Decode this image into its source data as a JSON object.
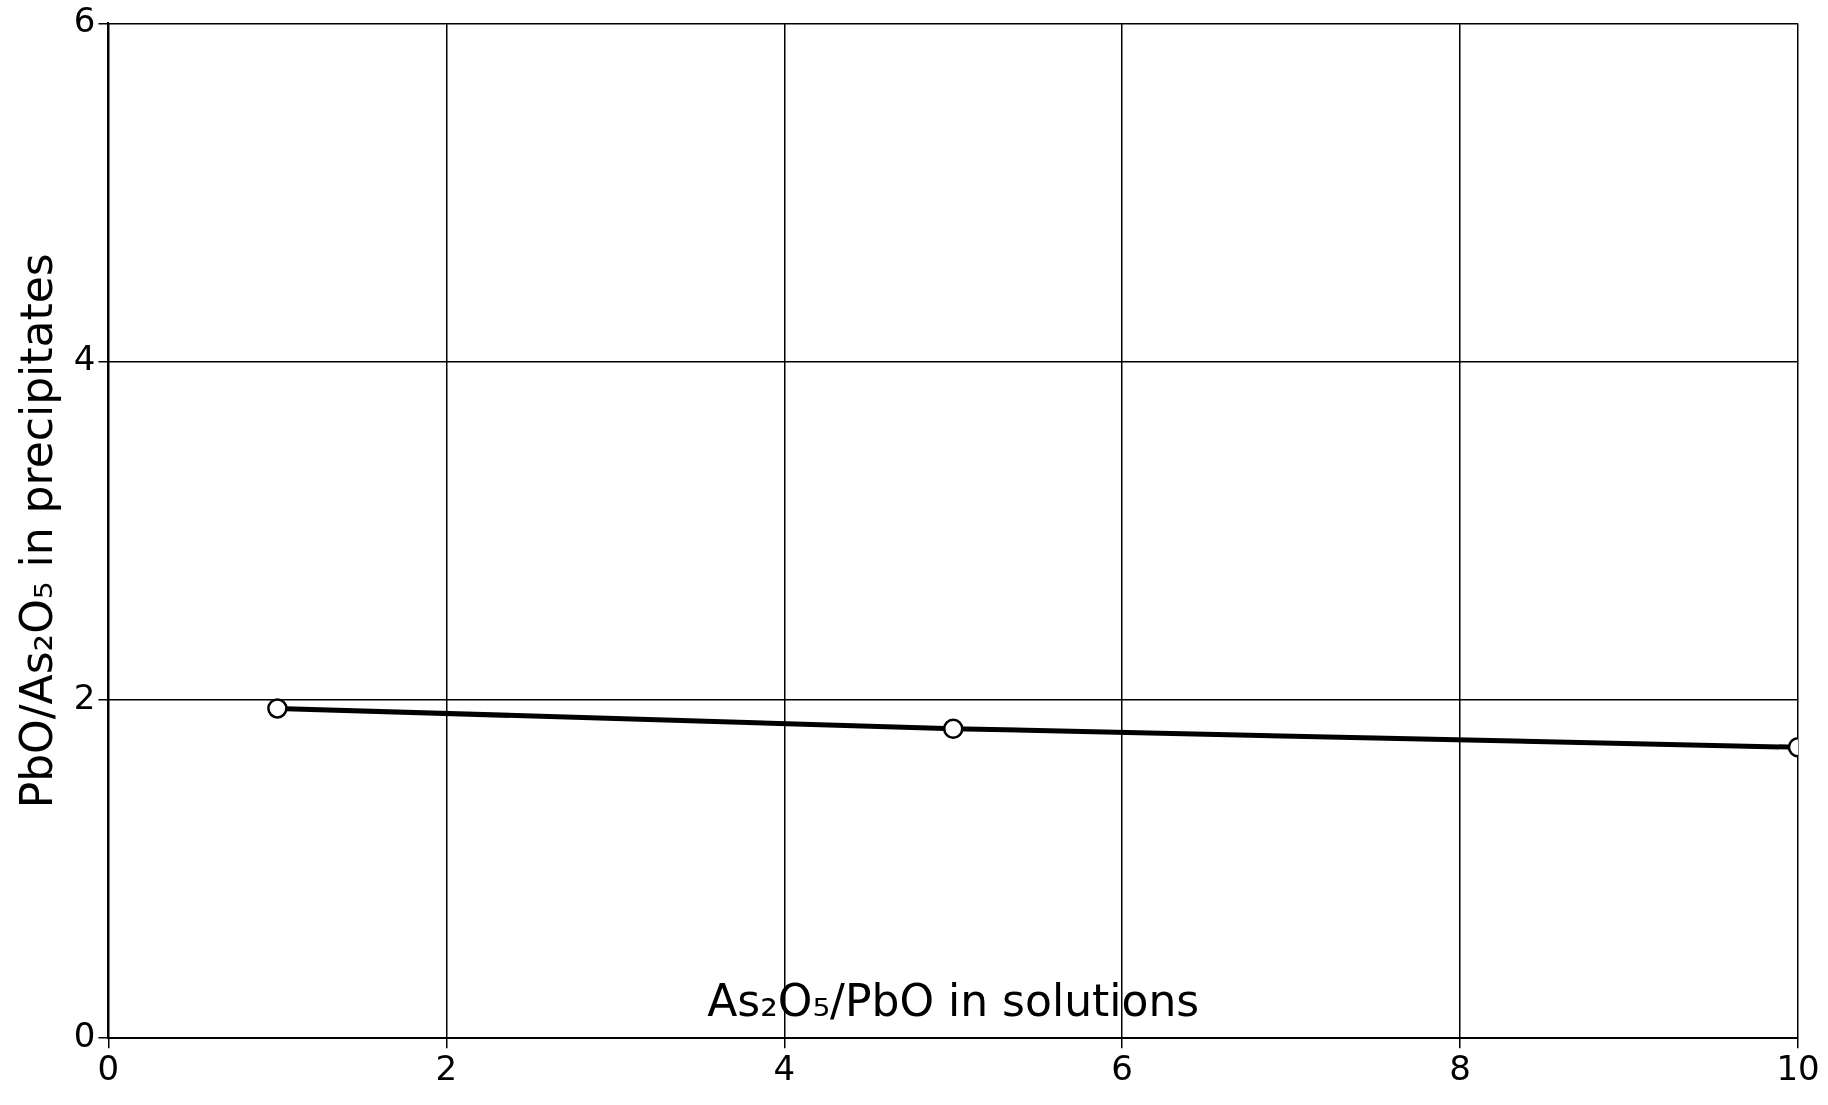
{
  "chart_data": {
    "type": "line",
    "xlabel": "As₂O₅/PbO in solutions",
    "ylabel": "PbO/As₂O₅ in precipitates",
    "x": [
      1,
      5,
      10
    ],
    "series": [
      {
        "color": "#000000",
        "values": [
          1.95,
          1.83,
          1.72
        ]
      }
    ],
    "xlim": [
      0,
      10
    ],
    "xticks": [
      0,
      2,
      4,
      6,
      8,
      10
    ],
    "ylim": [
      0,
      6
    ],
    "yticks": [
      0,
      2,
      4,
      6
    ],
    "grid": true,
    "marker": "circle",
    "line_style": "solid",
    "legend": false
  }
}
